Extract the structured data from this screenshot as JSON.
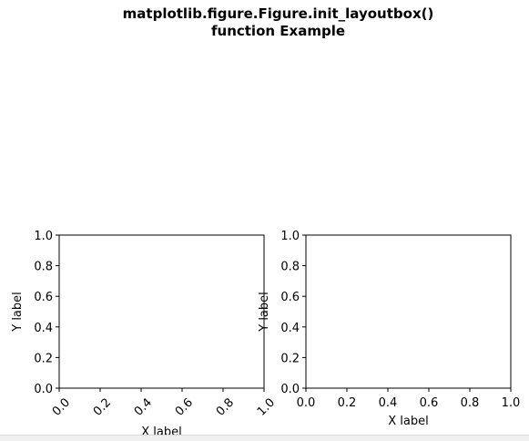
{
  "figure": {
    "title_line1": "matplotlib.figure.Figure.init_layoutbox()",
    "title_line2": "function Example"
  },
  "chart_data": [
    {
      "type": "line",
      "title": "",
      "xlabel": "X label",
      "ylabel": "Y label",
      "xlim": [
        0.0,
        1.0
      ],
      "ylim": [
        0.0,
        1.0
      ],
      "xticks": [
        "0.0",
        "0.2",
        "0.4",
        "0.6",
        "0.8",
        "1.0"
      ],
      "yticks": [
        "0.0",
        "0.2",
        "0.4",
        "0.6",
        "0.8",
        "1.0"
      ],
      "xtick_rotation": -45,
      "grid": false,
      "series": []
    },
    {
      "type": "line",
      "title": "",
      "xlabel": "X label",
      "ylabel": "Y label",
      "xlim": [
        0.0,
        1.0
      ],
      "ylim": [
        0.0,
        1.0
      ],
      "xticks": [
        "0.0",
        "0.2",
        "0.4",
        "0.6",
        "0.8",
        "1.0"
      ],
      "yticks": [
        "0.0",
        "0.2",
        "0.4",
        "0.6",
        "0.8",
        "1.0"
      ],
      "xtick_rotation": 0,
      "grid": false,
      "series": []
    }
  ]
}
